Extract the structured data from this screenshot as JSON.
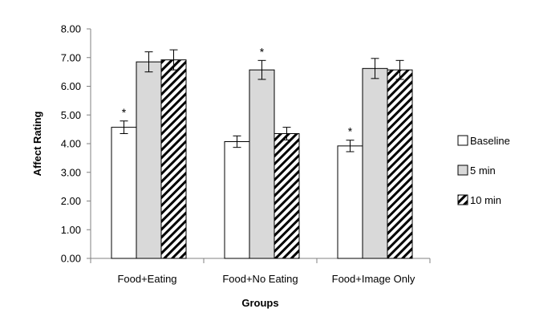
{
  "chart_data": {
    "type": "bar",
    "title": "",
    "xlabel": "Groups",
    "ylabel": "Affect Rating",
    "ylim": [
      0,
      8
    ],
    "yticks": [
      "0.00",
      "1.00",
      "2.00",
      "3.00",
      "4.00",
      "5.00",
      "6.00",
      "7.00",
      "8.00"
    ],
    "categories": [
      "Food+Eating",
      "Food+No Eating",
      "Food+Image Only"
    ],
    "series": [
      {
        "name": "Baseline",
        "fill": "#ffffff",
        "pattern": "none",
        "values": [
          4.57,
          4.07,
          3.92
        ],
        "errors": [
          0.22,
          0.2,
          0.2
        ],
        "significant": [
          true,
          false,
          true
        ]
      },
      {
        "name": "5 min",
        "fill": "#d9d9d9",
        "pattern": "none",
        "values": [
          6.85,
          6.57,
          6.62
        ],
        "errors": [
          0.35,
          0.33,
          0.35
        ],
        "significant": [
          false,
          true,
          false
        ]
      },
      {
        "name": "10 min",
        "fill": "#ffffff",
        "pattern": "diagonal-stripes",
        "values": [
          6.92,
          4.35,
          6.57
        ],
        "errors": [
          0.35,
          0.22,
          0.33
        ],
        "significant": [
          false,
          false,
          false
        ]
      }
    ],
    "significance_marker": "*",
    "legend_position": "right",
    "grid": false
  }
}
